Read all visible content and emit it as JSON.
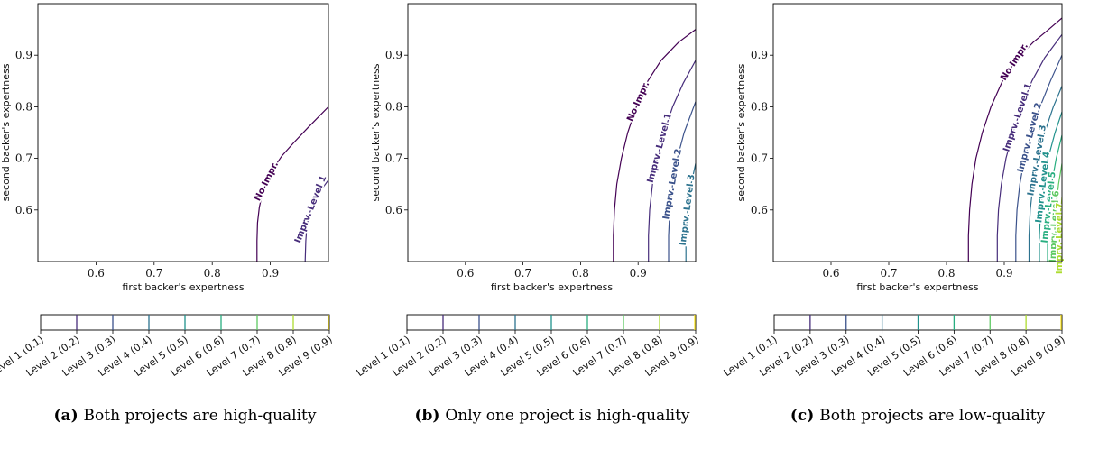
{
  "chart_data": [
    {
      "type": "contour",
      "xlabel": "first backer's expertness",
      "ylabel": "second backer's expertness",
      "xlim": [
        0.5,
        1.0
      ],
      "ylim": [
        0.5,
        1.0
      ],
      "xticks": [
        0.6,
        0.7,
        0.8,
        0.9
      ],
      "yticks": [
        0.6,
        0.7,
        0.8,
        0.9
      ],
      "caption_letter": "(a)",
      "caption_text": "Both projects are high-quality",
      "contours": [
        {
          "name": "No Impr.",
          "color": "#440154",
          "points": [
            [
              0.877,
              0.5
            ],
            [
              0.877,
              0.54
            ],
            [
              0.878,
              0.575
            ],
            [
              0.881,
              0.605
            ],
            [
              0.886,
              0.63
            ],
            [
              0.894,
              0.655
            ],
            [
              0.905,
              0.68
            ],
            [
              0.92,
              0.705
            ],
            [
              0.94,
              0.73
            ],
            [
              0.965,
              0.76
            ],
            [
              1.0,
              0.8
            ]
          ]
        },
        {
          "name": "Imprv. Level 1",
          "color": "#472d7b",
          "points": [
            [
              0.96,
              0.5
            ],
            [
              0.961,
              0.54
            ],
            [
              0.963,
              0.57
            ],
            [
              0.968,
              0.595
            ],
            [
              0.975,
              0.615
            ],
            [
              0.985,
              0.635
            ],
            [
              1.0,
              0.658
            ]
          ]
        }
      ],
      "colorbar": {
        "ticks": [
          "Level 1 (0.1)",
          "Level 2 (0.2)",
          "Level 3 (0.3)",
          "Level 4 (0.4)",
          "Level 5 (0.5)",
          "Level 6 (0.6)",
          "Level 7 (0.7)",
          "Level 8 (0.8)",
          "Level 9 (0.9)"
        ]
      }
    },
    {
      "type": "contour",
      "xlabel": "first backer's expertness",
      "ylabel": "second backer's expertness",
      "xlim": [
        0.5,
        1.0
      ],
      "ylim": [
        0.5,
        1.0
      ],
      "xticks": [
        0.6,
        0.7,
        0.8,
        0.9
      ],
      "yticks": [
        0.6,
        0.7,
        0.8,
        0.9
      ],
      "caption_letter": "(b)",
      "caption_text": "Only one project is high-quality",
      "contours": [
        {
          "name": "No Impr.",
          "color": "#440154",
          "points": [
            [
              0.857,
              0.5
            ],
            [
              0.857,
              0.55
            ],
            [
              0.859,
              0.6
            ],
            [
              0.863,
              0.65
            ],
            [
              0.871,
              0.7
            ],
            [
              0.882,
              0.75
            ],
            [
              0.897,
              0.8
            ],
            [
              0.917,
              0.85
            ],
            [
              0.94,
              0.89
            ],
            [
              0.97,
              0.925
            ],
            [
              1.0,
              0.95
            ]
          ]
        },
        {
          "name": "Imprv. Level 1",
          "color": "#472d7b",
          "points": [
            [
              0.918,
              0.5
            ],
            [
              0.918,
              0.55
            ],
            [
              0.92,
              0.6
            ],
            [
              0.925,
              0.65
            ],
            [
              0.933,
              0.7
            ],
            [
              0.945,
              0.75
            ],
            [
              0.96,
              0.8
            ],
            [
              0.978,
              0.845
            ],
            [
              1.0,
              0.89
            ]
          ]
        },
        {
          "name": "Imprv. Level 2",
          "color": "#3b528b",
          "points": [
            [
              0.953,
              0.5
            ],
            [
              0.953,
              0.55
            ],
            [
              0.955,
              0.6
            ],
            [
              0.96,
              0.65
            ],
            [
              0.968,
              0.7
            ],
            [
              0.98,
              0.75
            ],
            [
              1.0,
              0.81
            ]
          ]
        },
        {
          "name": "Imprv. Level 3",
          "color": "#2c728e",
          "points": [
            [
              0.983,
              0.5
            ],
            [
              0.983,
              0.55
            ],
            [
              0.986,
              0.6
            ],
            [
              0.991,
              0.645
            ],
            [
              1.0,
              0.69
            ]
          ]
        }
      ],
      "colorbar": {
        "ticks": [
          "Level 1 (0.1)",
          "Level 2 (0.2)",
          "Level 3 (0.3)",
          "Level 4 (0.4)",
          "Level 5 (0.5)",
          "Level 6 (0.6)",
          "Level 7 (0.7)",
          "Level 8 (0.8)",
          "Level 9 (0.9)"
        ]
      }
    },
    {
      "type": "contour",
      "xlabel": "first backer's expertness",
      "ylabel": "second backer's expertness",
      "xlim": [
        0.5,
        1.0
      ],
      "ylim": [
        0.5,
        1.0
      ],
      "xticks": [
        0.6,
        0.7,
        0.8,
        0.9
      ],
      "yticks": [
        0.6,
        0.7,
        0.8,
        0.9
      ],
      "caption_letter": "(c)",
      "caption_text": "Both projects are low-quality",
      "contours": [
        {
          "name": "No Impr.",
          "color": "#440154",
          "points": [
            [
              0.838,
              0.5
            ],
            [
              0.838,
              0.55
            ],
            [
              0.84,
              0.6
            ],
            [
              0.844,
              0.65
            ],
            [
              0.851,
              0.7
            ],
            [
              0.862,
              0.75
            ],
            [
              0.877,
              0.8
            ],
            [
              0.897,
              0.85
            ],
            [
              0.92,
              0.89
            ],
            [
              0.95,
              0.925
            ],
            [
              0.975,
              0.948
            ],
            [
              1.0,
              0.972
            ]
          ]
        },
        {
          "name": "Imprv. Level 1",
          "color": "#472d7b",
          "points": [
            [
              0.888,
              0.5
            ],
            [
              0.888,
              0.55
            ],
            [
              0.89,
              0.6
            ],
            [
              0.895,
              0.65
            ],
            [
              0.903,
              0.7
            ],
            [
              0.915,
              0.75
            ],
            [
              0.93,
              0.8
            ],
            [
              0.948,
              0.85
            ],
            [
              0.97,
              0.895
            ],
            [
              1.0,
              0.94
            ]
          ]
        },
        {
          "name": "Imprv. Level 2",
          "color": "#3b528b",
          "points": [
            [
              0.92,
              0.5
            ],
            [
              0.92,
              0.55
            ],
            [
              0.922,
              0.6
            ],
            [
              0.927,
              0.65
            ],
            [
              0.935,
              0.7
            ],
            [
              0.947,
              0.75
            ],
            [
              0.962,
              0.8
            ],
            [
              0.98,
              0.85
            ],
            [
              1.0,
              0.9
            ]
          ]
        },
        {
          "name": "Imprv. Level 3",
          "color": "#2c728e",
          "points": [
            [
              0.943,
              0.5
            ],
            [
              0.943,
              0.55
            ],
            [
              0.945,
              0.6
            ],
            [
              0.95,
              0.65
            ],
            [
              0.958,
              0.7
            ],
            [
              0.97,
              0.75
            ],
            [
              0.985,
              0.8
            ],
            [
              1.0,
              0.84
            ]
          ]
        },
        {
          "name": "Imprv. Level 4",
          "color": "#21918c",
          "points": [
            [
              0.961,
              0.5
            ],
            [
              0.961,
              0.55
            ],
            [
              0.963,
              0.6
            ],
            [
              0.968,
              0.65
            ],
            [
              0.976,
              0.7
            ],
            [
              0.988,
              0.75
            ],
            [
              1.0,
              0.79
            ]
          ]
        },
        {
          "name": "Imprv. Level 5",
          "color": "#28ae80",
          "points": [
            [
              0.975,
              0.5
            ],
            [
              0.975,
              0.55
            ],
            [
              0.977,
              0.6
            ],
            [
              0.982,
              0.65
            ],
            [
              0.99,
              0.7
            ],
            [
              1.0,
              0.745
            ]
          ]
        },
        {
          "name": "Imprv. Level 6",
          "color": "#5ec962",
          "points": [
            [
              0.987,
              0.5
            ],
            [
              0.987,
              0.55
            ],
            [
              0.989,
              0.6
            ],
            [
              0.994,
              0.65
            ],
            [
              1.0,
              0.69
            ]
          ]
        },
        {
          "name": "Imprv. Level 7",
          "color": "#addc30",
          "points": [
            [
              0.996,
              0.5
            ],
            [
              0.996,
              0.55
            ],
            [
              0.998,
              0.6
            ],
            [
              1.0,
              0.625
            ]
          ]
        }
      ],
      "colorbar": {
        "ticks": [
          "Level 1 (0.1)",
          "Level 2 (0.2)",
          "Level 3 (0.3)",
          "Level 4 (0.4)",
          "Level 5 (0.5)",
          "Level 6 (0.6)",
          "Level 7 (0.7)",
          "Level 8 (0.8)",
          "Level 9 (0.9)"
        ]
      }
    }
  ],
  "colorbar_colors": [
    "#440154",
    "#472d7b",
    "#3b528b",
    "#2c728e",
    "#21918c",
    "#28ae80",
    "#5ec962",
    "#addc30",
    "#fde725"
  ]
}
